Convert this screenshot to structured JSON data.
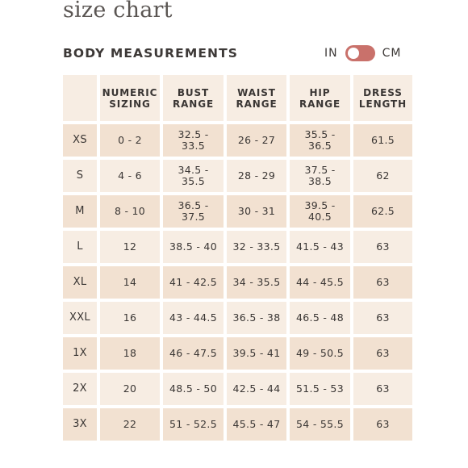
{
  "page_title": "size chart",
  "section_title": "BODY MEASUREMENTS",
  "unit_toggle": {
    "left_label": "IN",
    "right_label": "CM",
    "selected": "CM"
  },
  "colors": {
    "toggle_accent": "#c9716b",
    "row_light": "#f7ede3",
    "row_dark": "#f2e1d1"
  },
  "table": {
    "headers": [
      "",
      "NUMERIC\nSIZING",
      "BUST\nRANGE",
      "WAIST\nRANGE",
      "HIP\nRANGE",
      "DRESS\nLENGTH"
    ],
    "rows": [
      [
        "XS",
        "0 - 2",
        "32.5 -\n33.5",
        "26 - 27",
        "35.5 -\n36.5",
        "61.5"
      ],
      [
        "S",
        "4 - 6",
        "34.5 -\n35.5",
        "28 - 29",
        "37.5 -\n38.5",
        "62"
      ],
      [
        "M",
        "8 - 10",
        "36.5 -\n37.5",
        "30 - 31",
        "39.5 -\n40.5",
        "62.5"
      ],
      [
        "L",
        "12",
        "38.5 - 40",
        "32 - 33.5",
        "41.5 - 43",
        "63"
      ],
      [
        "XL",
        "14",
        "41 - 42.5",
        "34 - 35.5",
        "44 - 45.5",
        "63"
      ],
      [
        "XXL",
        "16",
        "43 - 44.5",
        "36.5 - 38",
        "46.5 - 48",
        "63"
      ],
      [
        "1X",
        "18",
        "46 - 47.5",
        "39.5 - 41",
        "49 - 50.5",
        "63"
      ],
      [
        "2X",
        "20",
        "48.5 - 50",
        "42.5 - 44",
        "51.5 - 53",
        "63"
      ],
      [
        "3X",
        "22",
        "51 - 52.5",
        "45.5 - 47",
        "54 - 55.5",
        "63"
      ]
    ]
  }
}
